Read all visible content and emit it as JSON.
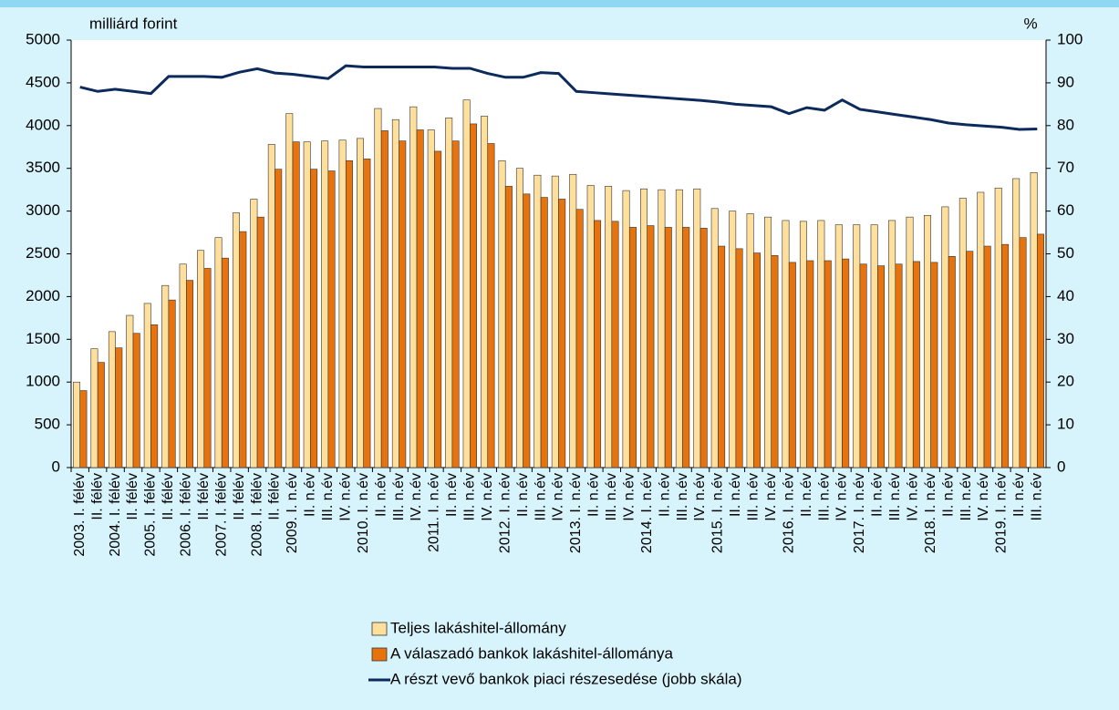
{
  "chart_data": {
    "type": "bar",
    "y_label": "milliárd forint",
    "y2_label": "%",
    "categories": [
      "2003. I. félév",
      "II. félév",
      "2004. I. félév",
      "II. félév",
      "2005. I. félév",
      "II. félév",
      "2006. I. félév",
      "II. félév",
      "2007. I. félév",
      "II. félév",
      "2008. I. félév",
      "II. félév",
      "2009. I. n.év",
      "II. n.év",
      "III. n.év",
      "IV. n.év",
      "2010. I. n.év",
      "II. n.év",
      "III. n.év",
      "IV. n.év",
      "2011. I. n.év",
      "II. n.év",
      "III. n.év",
      "IV. n.év",
      "2012. I. n.év",
      "II. n.év",
      "III. n.év",
      "IV. n.év",
      "2013. I. n.év",
      "II. n.év",
      "III. n.év",
      "IV. n.év",
      "2014. I. n.év",
      "II. n.év",
      "III. n.év",
      "IV. n.év",
      "2015. I. n.év",
      "II. n.év",
      "III. n.év",
      "IV. n.év",
      "2016. I. n.év",
      "II. n.év",
      "III. n.év",
      "IV. n.év",
      "2017. I. n.év",
      "II. n.év",
      "III. n.év",
      "IV. n.év",
      "2018. I. n.év",
      "II. n.év",
      "III. n.év",
      "IV. n.év",
      "2019. I. n.év",
      "II. n.év",
      "III. n.év"
    ],
    "series": [
      {
        "name": "Teljes lakáshitel-állomány",
        "type": "bar",
        "color": "#fedf9c",
        "values": [
          1000,
          1390,
          1590,
          1780,
          1920,
          2130,
          2380,
          2540,
          2690,
          2980,
          3140,
          3780,
          4140,
          3810,
          3820,
          3830,
          3850,
          4200,
          4070,
          4220,
          3950,
          4090,
          4300,
          4110,
          3590,
          3500,
          3420,
          3410,
          3430,
          3300,
          3290,
          3240,
          3260,
          3250,
          3250,
          3260,
          3030,
          3000,
          2970,
          2930,
          2890,
          2880,
          2890,
          2840,
          2840,
          2840,
          2890,
          2930,
          2950,
          3050,
          3150,
          3220,
          3270,
          3380,
          3450
        ]
      },
      {
        "name": "A válaszadó bankok lakáshitel-állománya",
        "type": "bar",
        "color": "#e6730e",
        "values": [
          900,
          1230,
          1400,
          1570,
          1670,
          1960,
          2190,
          2330,
          2450,
          2760,
          2930,
          3490,
          3810,
          3490,
          3470,
          3590,
          3610,
          3940,
          3820,
          3950,
          3700,
          3820,
          4020,
          3790,
          3290,
          3200,
          3160,
          3140,
          3020,
          2890,
          2880,
          2810,
          2830,
          2810,
          2810,
          2800,
          2590,
          2560,
          2510,
          2480,
          2400,
          2420,
          2420,
          2440,
          2380,
          2360,
          2380,
          2410,
          2400,
          2470,
          2530,
          2590,
          2610,
          2690,
          2730
        ]
      },
      {
        "name": "A részt vevő bankok piaci részesedése (jobb skála)",
        "type": "line",
        "axis": "y2",
        "color": "#0c2a5c",
        "values": [
          89,
          88,
          88.5,
          88,
          87.5,
          91.5,
          91.5,
          91.5,
          91.3,
          92.5,
          93.3,
          92.3,
          92,
          91.5,
          91,
          94,
          93.7,
          93.7,
          93.7,
          93.7,
          93.7,
          93.4,
          93.4,
          92.2,
          91.3,
          91.3,
          92.4,
          92.2,
          88,
          87.7,
          87.4,
          87.1,
          86.8,
          86.5,
          86.2,
          85.9,
          85.5,
          85,
          84.7,
          84.4,
          82.8,
          84.2,
          83.6,
          86,
          83.8,
          83.2,
          82.6,
          82,
          81.4,
          80.6,
          80.2,
          79.9,
          79.6,
          79.1,
          79.2
        ]
      }
    ],
    "ylim": [
      0,
      5000
    ],
    "yticks": [
      0,
      500,
      1000,
      1500,
      2000,
      2500,
      3000,
      3500,
      4000,
      4500,
      5000
    ],
    "y2lim": [
      0,
      100
    ],
    "y2ticks": [
      0,
      10,
      20,
      30,
      40,
      50,
      60,
      70,
      80,
      90,
      100
    ],
    "grid": false,
    "legend": "bottom"
  }
}
